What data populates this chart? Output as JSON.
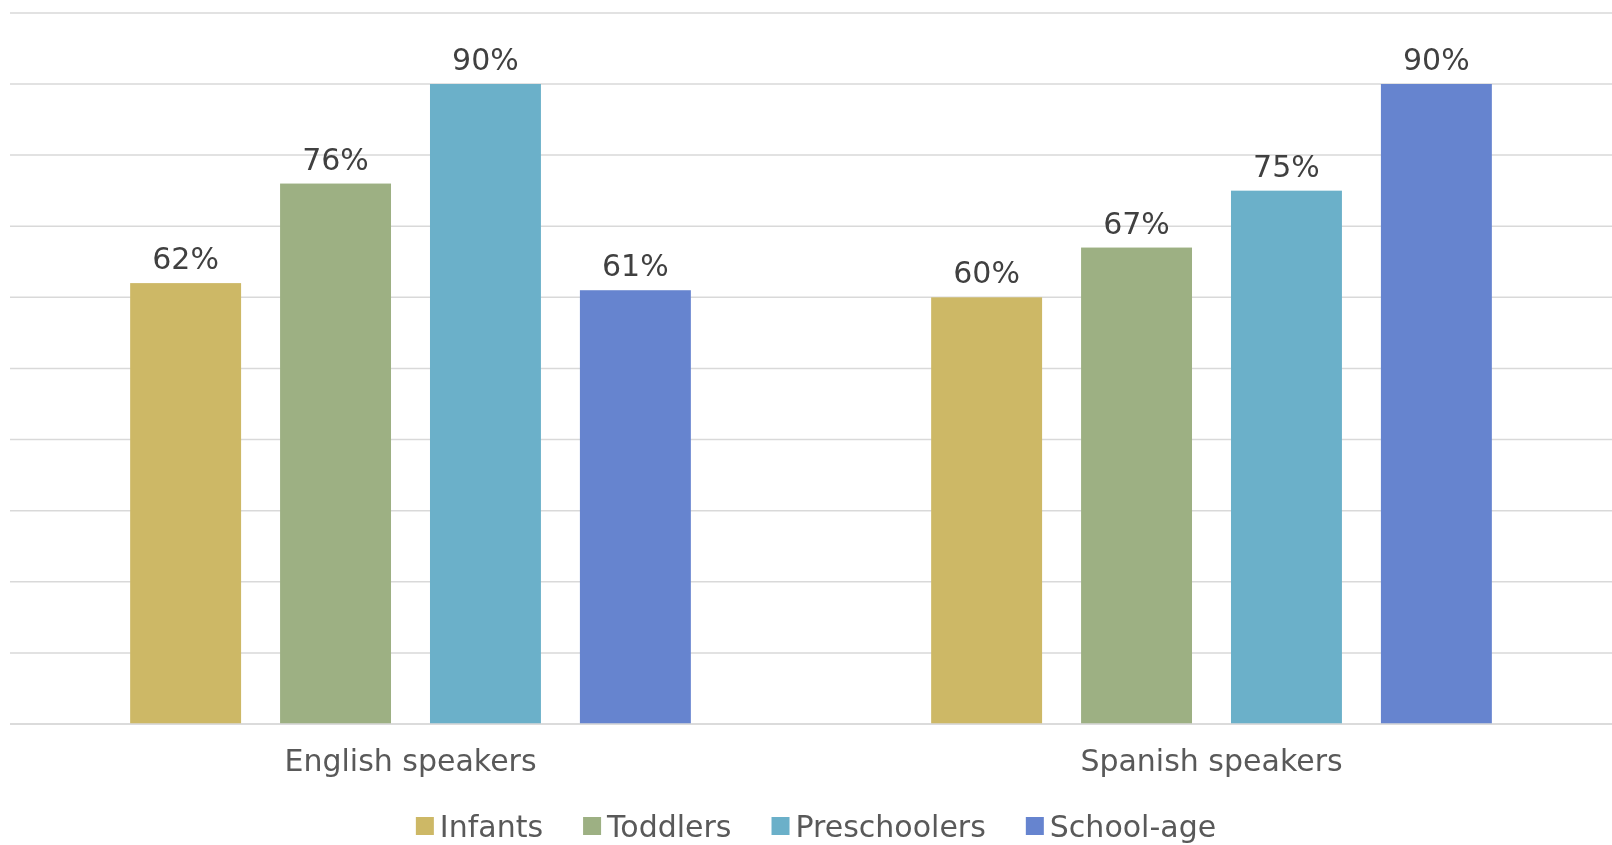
{
  "chart_data": {
    "type": "bar",
    "categories": [
      "English speakers",
      "Spanish speakers"
    ],
    "series": [
      {
        "name": "Infants",
        "color": "#cdb866",
        "values": [
          62,
          60
        ],
        "value_labels": [
          "62%",
          "60%"
        ]
      },
      {
        "name": "Toddlers",
        "color": "#9db083",
        "values": [
          76,
          67
        ],
        "value_labels": [
          "76%",
          "67%"
        ]
      },
      {
        "name": "Preschoolers",
        "color": "#6bb0c9",
        "values": [
          90,
          75
        ],
        "value_labels": [
          "90%",
          "75%"
        ]
      },
      {
        "name": "School-age",
        "color": "#6684cf",
        "values": [
          61,
          90
        ],
        "value_labels": [
          "61%",
          "90%"
        ]
      }
    ],
    "tick_labels": "x",
    "grid": "y",
    "legend": "bottom"
  }
}
